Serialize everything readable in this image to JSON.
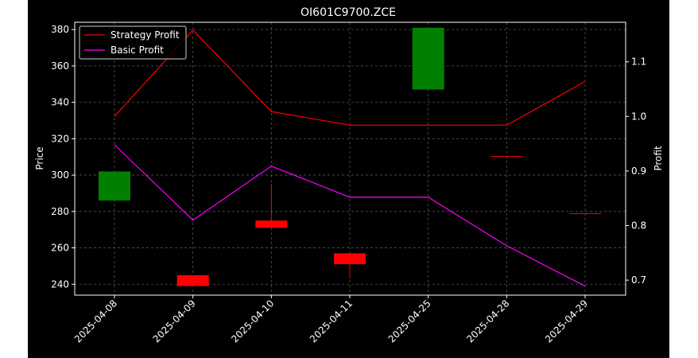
{
  "chart_data": {
    "type": "candlestick",
    "title": "OI601C9700.ZCE",
    "xlabel": "",
    "ylabel_left": "Price",
    "ylabel_right": "Profit",
    "categories": [
      "2025-04-08",
      "2025-04-09",
      "2025-04-10",
      "2025-04-11",
      "2025-04-25",
      "2025-04-28",
      "2025-04-29"
    ],
    "ylim_left": [
      234,
      384
    ],
    "yticks_left": [
      240,
      260,
      280,
      300,
      320,
      340,
      360,
      380
    ],
    "ylim_right": [
      0.6725,
      1.1725
    ],
    "yticks_right": [
      "0.7",
      "0.8",
      "0.9",
      "1.0",
      "1.1"
    ],
    "grid": true,
    "legend_position": "upper left",
    "candles": [
      {
        "date": "2025-04-08",
        "open": 286,
        "close": 302,
        "high": 302,
        "low": 286
      },
      {
        "date": "2025-04-09",
        "open": 245,
        "close": 239,
        "high": 245,
        "low": 239
      },
      {
        "date": "2025-04-10",
        "open": 275,
        "close": 271,
        "high": 295,
        "low": 271
      },
      {
        "date": "2025-04-11",
        "open": 257,
        "close": 251,
        "high": 257,
        "low": 243
      },
      {
        "date": "2025-04-25",
        "open": 347,
        "close": 381,
        "high": 381,
        "low": 347
      },
      {
        "date": "2025-04-28",
        "open": 310.5,
        "close": 310.5,
        "high": 310.5,
        "low": 310.5
      },
      {
        "date": "2025-04-29",
        "open": 279,
        "close": 279,
        "high": 279,
        "low": 279
      }
    ],
    "series": [
      {
        "name": "Strategy Profit",
        "color": "#ff0000",
        "axis": "right",
        "values": [
          1.0,
          1.158,
          1.009,
          0.984,
          0.984,
          0.984,
          1.064
        ]
      },
      {
        "name": "Basic Profit",
        "color": "#ff00ff",
        "axis": "right",
        "values": [
          0.948,
          0.81,
          0.909,
          0.852,
          0.852,
          0.763,
          0.689
        ]
      }
    ],
    "colors": {
      "up": "#008000",
      "down": "#ff0000",
      "background": "#000000",
      "grid": "#555555",
      "axes": "#ffffff"
    }
  }
}
